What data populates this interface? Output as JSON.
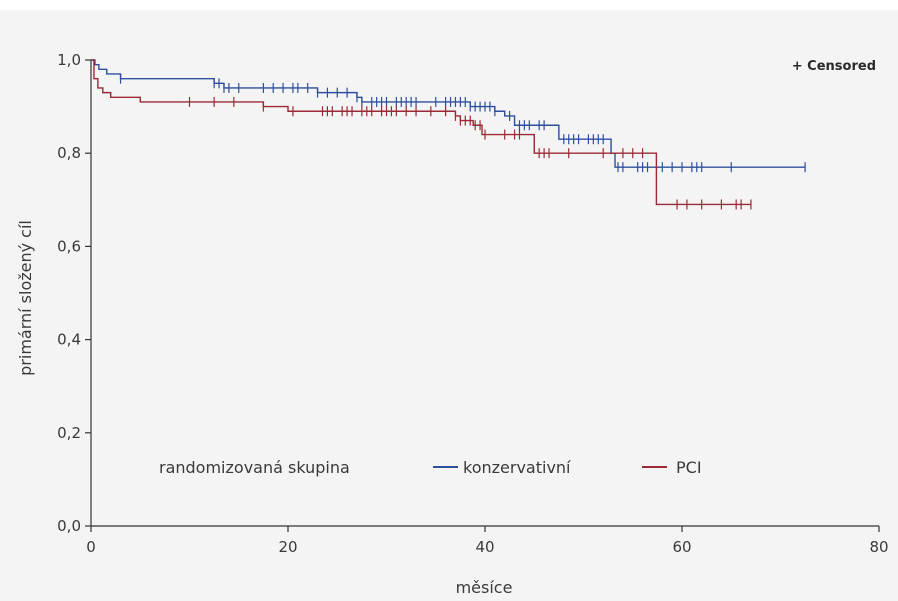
{
  "chart_data": {
    "type": "line",
    "title": "",
    "xlabel": "měsíce",
    "ylabel": "primární složený cíl",
    "xlim": [
      0,
      80
    ],
    "ylim": [
      0,
      1
    ],
    "xticks": [
      0,
      20,
      40,
      60,
      80
    ],
    "xtick_labels": [
      "0",
      "20",
      "40",
      "60",
      "80"
    ],
    "yticks": [
      0,
      0.2,
      0.4,
      0.6,
      0.8,
      1.0
    ],
    "ytick_labels": [
      "0,0",
      "0,2",
      "0,4",
      "0,6",
      "0,8",
      "1,0"
    ],
    "grid": false,
    "censored_label": "+ Censored",
    "legend": {
      "title": "randomizovaná skupina",
      "placement": "bottom-left"
    },
    "series": [
      {
        "name": "konzervativní",
        "color": "#2e4f9c",
        "steps": [
          [
            0,
            1.0
          ],
          [
            0.4,
            0.99
          ],
          [
            0.8,
            0.98
          ],
          [
            1.6,
            0.97
          ],
          [
            3,
            0.96
          ],
          [
            12.5,
            0.95
          ],
          [
            13.5,
            0.94
          ],
          [
            23,
            0.93
          ],
          [
            27,
            0.92
          ],
          [
            27.5,
            0.91
          ],
          [
            38.5,
            0.9
          ],
          [
            41,
            0.89
          ],
          [
            42,
            0.88
          ],
          [
            43,
            0.86
          ],
          [
            47.5,
            0.83
          ],
          [
            52.8,
            0.8
          ],
          [
            53.2,
            0.77
          ],
          [
            72.5,
            0.77
          ]
        ],
        "censored": [
          3,
          12.5,
          13,
          13.5,
          14,
          15,
          17.5,
          18.5,
          19.5,
          20.5,
          21,
          22,
          23,
          24,
          25,
          26,
          27,
          27.5,
          28.5,
          29,
          29.5,
          30,
          31,
          31.5,
          32,
          32.5,
          33,
          35,
          36,
          36.5,
          37,
          37.5,
          38,
          38.5,
          39,
          39.5,
          40,
          40.5,
          41,
          42.5,
          43.5,
          44,
          44.5,
          45.5,
          46,
          48,
          48.5,
          49,
          49.5,
          50.5,
          51,
          51.5,
          52,
          53.5,
          54,
          55.5,
          56,
          56.5,
          58,
          59,
          60,
          61,
          61.5,
          62,
          65,
          72.5
        ]
      },
      {
        "name": "PCI",
        "color": "#9b2a36",
        "steps": [
          [
            0,
            1.0
          ],
          [
            0.3,
            0.96
          ],
          [
            0.7,
            0.94
          ],
          [
            1.2,
            0.93
          ],
          [
            2,
            0.92
          ],
          [
            5,
            0.91
          ],
          [
            17.5,
            0.9
          ],
          [
            20,
            0.89
          ],
          [
            37,
            0.88
          ],
          [
            37.5,
            0.87
          ],
          [
            38.8,
            0.86
          ],
          [
            39.7,
            0.84
          ],
          [
            45,
            0.8
          ],
          [
            57.4,
            0.69
          ],
          [
            67,
            0.69
          ]
        ],
        "censored": [
          10,
          12.5,
          14.5,
          17.5,
          20.5,
          23.5,
          24,
          24.5,
          25.5,
          26,
          26.5,
          27.5,
          28,
          28.5,
          29.5,
          30,
          30.5,
          31,
          32,
          33,
          34.5,
          36,
          37,
          37.5,
          38,
          38.5,
          39,
          39.5,
          40,
          42,
          43,
          43.5,
          45.5,
          46,
          46.5,
          48.5,
          52,
          54,
          55,
          56,
          59.5,
          60.5,
          62,
          64,
          65.5,
          66,
          67
        ]
      }
    ]
  }
}
